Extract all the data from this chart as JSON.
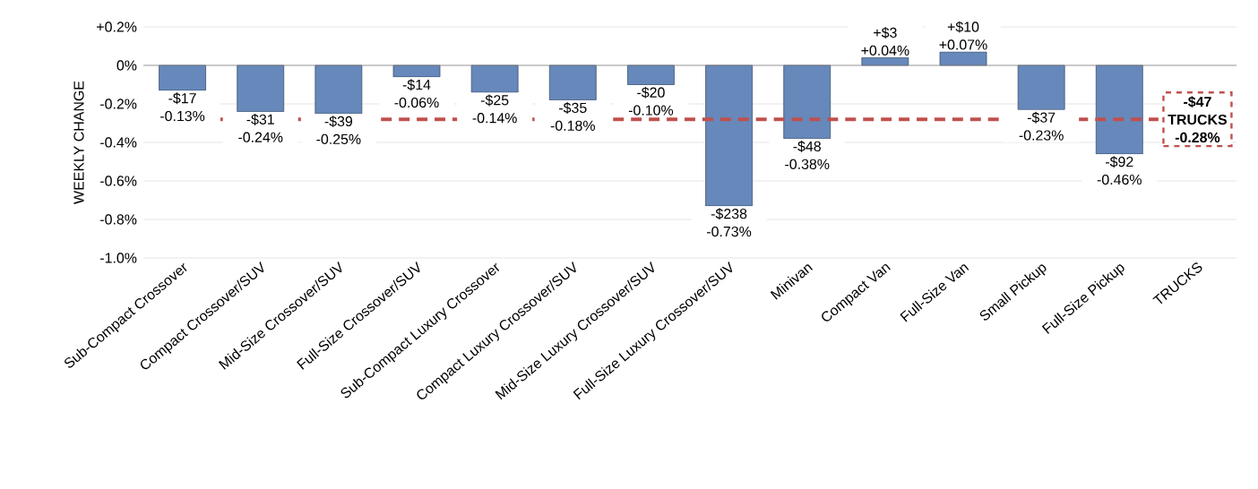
{
  "chart_data": {
    "type": "bar",
    "ylabel": "WEEKLY CHANGE",
    "categories": [
      "Sub-Compact Crossover",
      "Compact Crossover/SUV",
      "Mid-Size Crossover/SUV",
      "Full-Size Crossover/SUV",
      "Sub-Compact Luxury Crossover",
      "Compact Luxury Crossover/SUV",
      "Mid-Size Luxury Crossover/SUV",
      "Full-Size Luxury Crossover/SUV",
      "Minivan",
      "Compact Van",
      "Full-Size Van",
      "Small Pickup",
      "Full-Size Pickup",
      "TRUCKS"
    ],
    "values": [
      -0.13,
      -0.24,
      -0.25,
      -0.06,
      -0.14,
      -0.18,
      -0.1,
      -0.73,
      -0.38,
      0.04,
      0.07,
      -0.23,
      -0.46,
      null
    ],
    "value_labels": [
      "-$17 -0.13%",
      "-$31 -0.24%",
      "-$39 -0.25%",
      "-$14 -0.06%",
      "-$25 -0.14%",
      "-$35 -0.18%",
      "-$20 -0.10%",
      "-$238 -0.73%",
      "-$48 -0.38%",
      "+$3 +0.04%",
      "+$10 +0.07%",
      "-$37 -0.23%",
      "-$92 -0.46%",
      null
    ],
    "color": "#6688bb",
    "ylim": [
      -1.0,
      0.2
    ],
    "yticks": [
      {
        "value": 0.2,
        "label": "+0.2%"
      },
      {
        "value": 0,
        "label": "0%"
      },
      {
        "value": -0.2,
        "label": "-0.2%"
      },
      {
        "value": -0.4,
        "label": "-0.4%"
      },
      {
        "value": -0.6,
        "label": "-0.6%"
      },
      {
        "value": -0.8,
        "label": "-0.8%"
      },
      {
        "value": -1.0,
        "label": "-1.0%"
      }
    ],
    "grid": "y",
    "ref_lines": [
      {
        "axis": "y",
        "value": -0.28,
        "label": "-$47 TRUCKS -0.28%",
        "color": "#c0504d",
        "line_style": "dashed"
      }
    ]
  }
}
